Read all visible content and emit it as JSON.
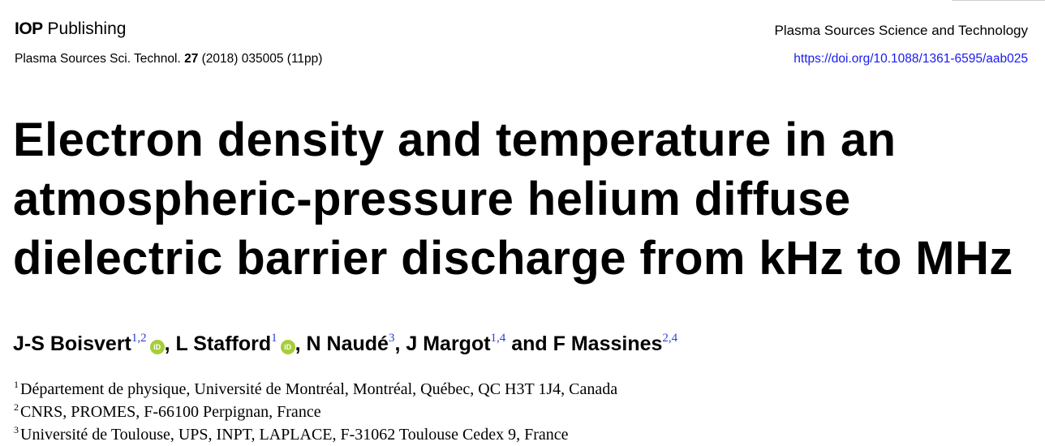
{
  "header": {
    "publisher_mark": "IOP",
    "publisher_word": "Publishing",
    "journal": "Plasma Sources Science and Technology",
    "citation_prefix": "Plasma Sources Sci. Technol.",
    "volume": "27",
    "citation_suffix": "(2018) 035005 (11pp)",
    "doi": "https://doi.org/10.1088/1361-6595/aab025"
  },
  "title_lines": [
    "Electron density and temperature in an",
    "atmospheric-pressure helium diffuse",
    "dielectric barrier discharge from kHz to MHz"
  ],
  "orcid_label": "iD",
  "authors": [
    {
      "name": "J-S Boisvert",
      "sup": "1,2",
      "orcid": true,
      "sep": ", "
    },
    {
      "name": "L Stafford",
      "sup": "1",
      "orcid": true,
      "sep": ", "
    },
    {
      "name": "N Naudé",
      "sup": "3",
      "orcid": false,
      "sep": ", "
    },
    {
      "name": "J Margot",
      "sup": "1,4",
      "orcid": false,
      "sep": " and "
    },
    {
      "name": "F Massines",
      "sup": "2,4",
      "orcid": false,
      "sep": ""
    }
  ],
  "affiliations": [
    {
      "num": "1",
      "text": "Département de physique, Université de Montréal, Montréal, Québec, QC H3T 1J4, Canada"
    },
    {
      "num": "2",
      "text": "CNRS, PROMES, F-66100 Perpignan, France"
    },
    {
      "num": "3",
      "text": "Université de Toulouse, UPS, INPT, LAPLACE, F-31062 Toulouse Cedex 9, France"
    }
  ]
}
